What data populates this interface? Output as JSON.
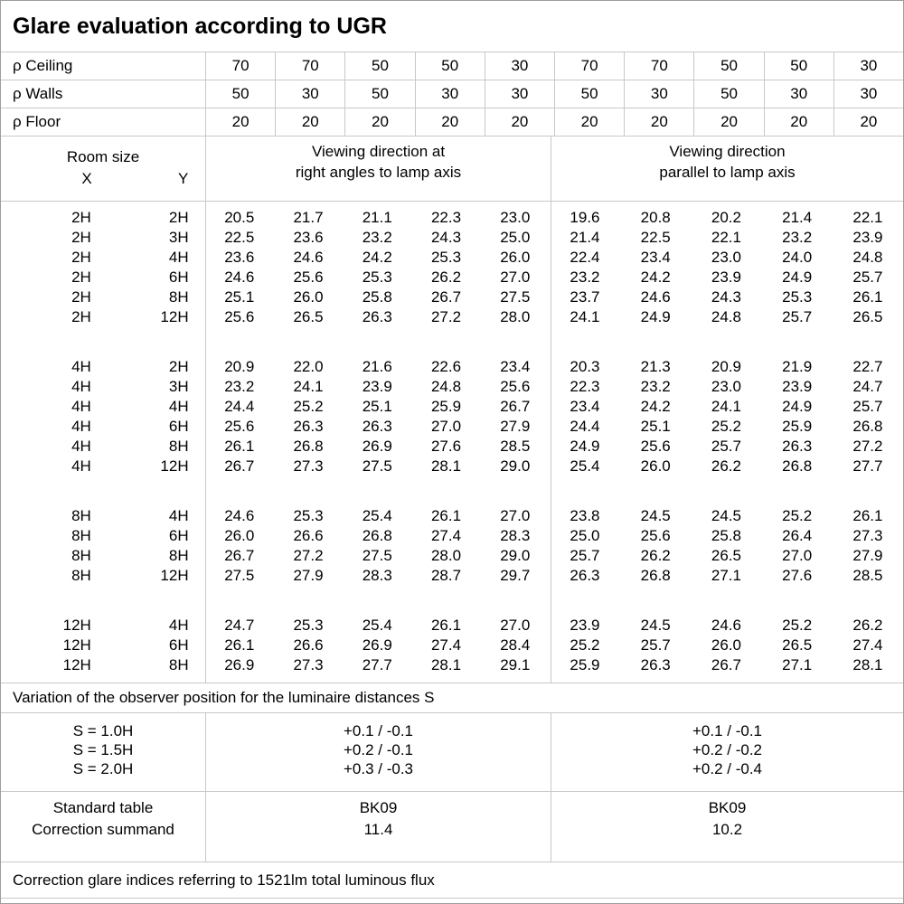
{
  "title": "Glare evaluation according to UGR",
  "colors": {
    "background": "#ffffff",
    "text": "#000000",
    "grid_line": "#c8c8c8",
    "outer_border": "#9e9e9e"
  },
  "reflectance_rows": [
    {
      "label": "ρ Ceiling",
      "values": [
        "70",
        "70",
        "50",
        "50",
        "30",
        "70",
        "70",
        "50",
        "50",
        "30"
      ]
    },
    {
      "label": "ρ Walls",
      "values": [
        "50",
        "30",
        "50",
        "30",
        "30",
        "50",
        "30",
        "50",
        "30",
        "30"
      ]
    },
    {
      "label": "ρ Floor",
      "values": [
        "20",
        "20",
        "20",
        "20",
        "20",
        "20",
        "20",
        "20",
        "20",
        "20"
      ]
    }
  ],
  "room_size": {
    "label": "Room size",
    "x_label": "X",
    "y_label": "Y"
  },
  "direction_headers": {
    "right_angles": [
      "Viewing direction at",
      "right angles to lamp axis"
    ],
    "parallel": [
      "Viewing direction",
      "parallel to lamp axis"
    ]
  },
  "ugr_groups": [
    {
      "rows": [
        {
          "x": "2H",
          "y": "2H",
          "right_angles": [
            "20.5",
            "21.7",
            "21.1",
            "22.3",
            "23.0"
          ],
          "parallel": [
            "19.6",
            "20.8",
            "20.2",
            "21.4",
            "22.1"
          ]
        },
        {
          "x": "2H",
          "y": "3H",
          "right_angles": [
            "22.5",
            "23.6",
            "23.2",
            "24.3",
            "25.0"
          ],
          "parallel": [
            "21.4",
            "22.5",
            "22.1",
            "23.2",
            "23.9"
          ]
        },
        {
          "x": "2H",
          "y": "4H",
          "right_angles": [
            "23.6",
            "24.6",
            "24.2",
            "25.3",
            "26.0"
          ],
          "parallel": [
            "22.4",
            "23.4",
            "23.0",
            "24.0",
            "24.8"
          ]
        },
        {
          "x": "2H",
          "y": "6H",
          "right_angles": [
            "24.6",
            "25.6",
            "25.3",
            "26.2",
            "27.0"
          ],
          "parallel": [
            "23.2",
            "24.2",
            "23.9",
            "24.9",
            "25.7"
          ]
        },
        {
          "x": "2H",
          "y": "8H",
          "right_angles": [
            "25.1",
            "26.0",
            "25.8",
            "26.7",
            "27.5"
          ],
          "parallel": [
            "23.7",
            "24.6",
            "24.3",
            "25.3",
            "26.1"
          ]
        },
        {
          "x": "2H",
          "y": "12H",
          "right_angles": [
            "25.6",
            "26.5",
            "26.3",
            "27.2",
            "28.0"
          ],
          "parallel": [
            "24.1",
            "24.9",
            "24.8",
            "25.7",
            "26.5"
          ]
        }
      ]
    },
    {
      "rows": [
        {
          "x": "4H",
          "y": "2H",
          "right_angles": [
            "20.9",
            "22.0",
            "21.6",
            "22.6",
            "23.4"
          ],
          "parallel": [
            "20.3",
            "21.3",
            "20.9",
            "21.9",
            "22.7"
          ]
        },
        {
          "x": "4H",
          "y": "3H",
          "right_angles": [
            "23.2",
            "24.1",
            "23.9",
            "24.8",
            "25.6"
          ],
          "parallel": [
            "22.3",
            "23.2",
            "23.0",
            "23.9",
            "24.7"
          ]
        },
        {
          "x": "4H",
          "y": "4H",
          "right_angles": [
            "24.4",
            "25.2",
            "25.1",
            "25.9",
            "26.7"
          ],
          "parallel": [
            "23.4",
            "24.2",
            "24.1",
            "24.9",
            "25.7"
          ]
        },
        {
          "x": "4H",
          "y": "6H",
          "right_angles": [
            "25.6",
            "26.3",
            "26.3",
            "27.0",
            "27.9"
          ],
          "parallel": [
            "24.4",
            "25.1",
            "25.2",
            "25.9",
            "26.8"
          ]
        },
        {
          "x": "4H",
          "y": "8H",
          "right_angles": [
            "26.1",
            "26.8",
            "26.9",
            "27.6",
            "28.5"
          ],
          "parallel": [
            "24.9",
            "25.6",
            "25.7",
            "26.3",
            "27.2"
          ]
        },
        {
          "x": "4H",
          "y": "12H",
          "right_angles": [
            "26.7",
            "27.3",
            "27.5",
            "28.1",
            "29.0"
          ],
          "parallel": [
            "25.4",
            "26.0",
            "26.2",
            "26.8",
            "27.7"
          ]
        }
      ]
    },
    {
      "rows": [
        {
          "x": "8H",
          "y": "4H",
          "right_angles": [
            "24.6",
            "25.3",
            "25.4",
            "26.1",
            "27.0"
          ],
          "parallel": [
            "23.8",
            "24.5",
            "24.5",
            "25.2",
            "26.1"
          ]
        },
        {
          "x": "8H",
          "y": "6H",
          "right_angles": [
            "26.0",
            "26.6",
            "26.8",
            "27.4",
            "28.3"
          ],
          "parallel": [
            "25.0",
            "25.6",
            "25.8",
            "26.4",
            "27.3"
          ]
        },
        {
          "x": "8H",
          "y": "8H",
          "right_angles": [
            "26.7",
            "27.2",
            "27.5",
            "28.0",
            "29.0"
          ],
          "parallel": [
            "25.7",
            "26.2",
            "26.5",
            "27.0",
            "27.9"
          ]
        },
        {
          "x": "8H",
          "y": "12H",
          "right_angles": [
            "27.5",
            "27.9",
            "28.3",
            "28.7",
            "29.7"
          ],
          "parallel": [
            "26.3",
            "26.8",
            "27.1",
            "27.6",
            "28.5"
          ]
        }
      ]
    },
    {
      "rows": [
        {
          "x": "12H",
          "y": "4H",
          "right_angles": [
            "24.7",
            "25.3",
            "25.4",
            "26.1",
            "27.0"
          ],
          "parallel": [
            "23.9",
            "24.5",
            "24.6",
            "25.2",
            "26.2"
          ]
        },
        {
          "x": "12H",
          "y": "6H",
          "right_angles": [
            "26.1",
            "26.6",
            "26.9",
            "27.4",
            "28.4"
          ],
          "parallel": [
            "25.2",
            "25.7",
            "26.0",
            "26.5",
            "27.4"
          ]
        },
        {
          "x": "12H",
          "y": "8H",
          "right_angles": [
            "26.9",
            "27.3",
            "27.7",
            "28.1",
            "29.1"
          ],
          "parallel": [
            "25.9",
            "26.3",
            "26.7",
            "27.1",
            "28.1"
          ]
        }
      ]
    }
  ],
  "variation_note": "Variation of the observer position for the luminaire distances S",
  "variation": {
    "labels": [
      "S = 1.0H",
      "S = 1.5H",
      "S = 2.0H"
    ],
    "right_angles": [
      "+0.1 / -0.1",
      "+0.2 / -0.1",
      "+0.3 / -0.3"
    ],
    "parallel": [
      "+0.1 / -0.1",
      "+0.2 / -0.2",
      "+0.2 / -0.4"
    ]
  },
  "summary": {
    "labels": [
      "Standard table",
      "Correction summand"
    ],
    "right_angles": [
      "BK09",
      "11.4"
    ],
    "parallel": [
      "BK09",
      "10.2"
    ]
  },
  "footer": "Correction glare indices referring to 1521lm total luminous flux"
}
